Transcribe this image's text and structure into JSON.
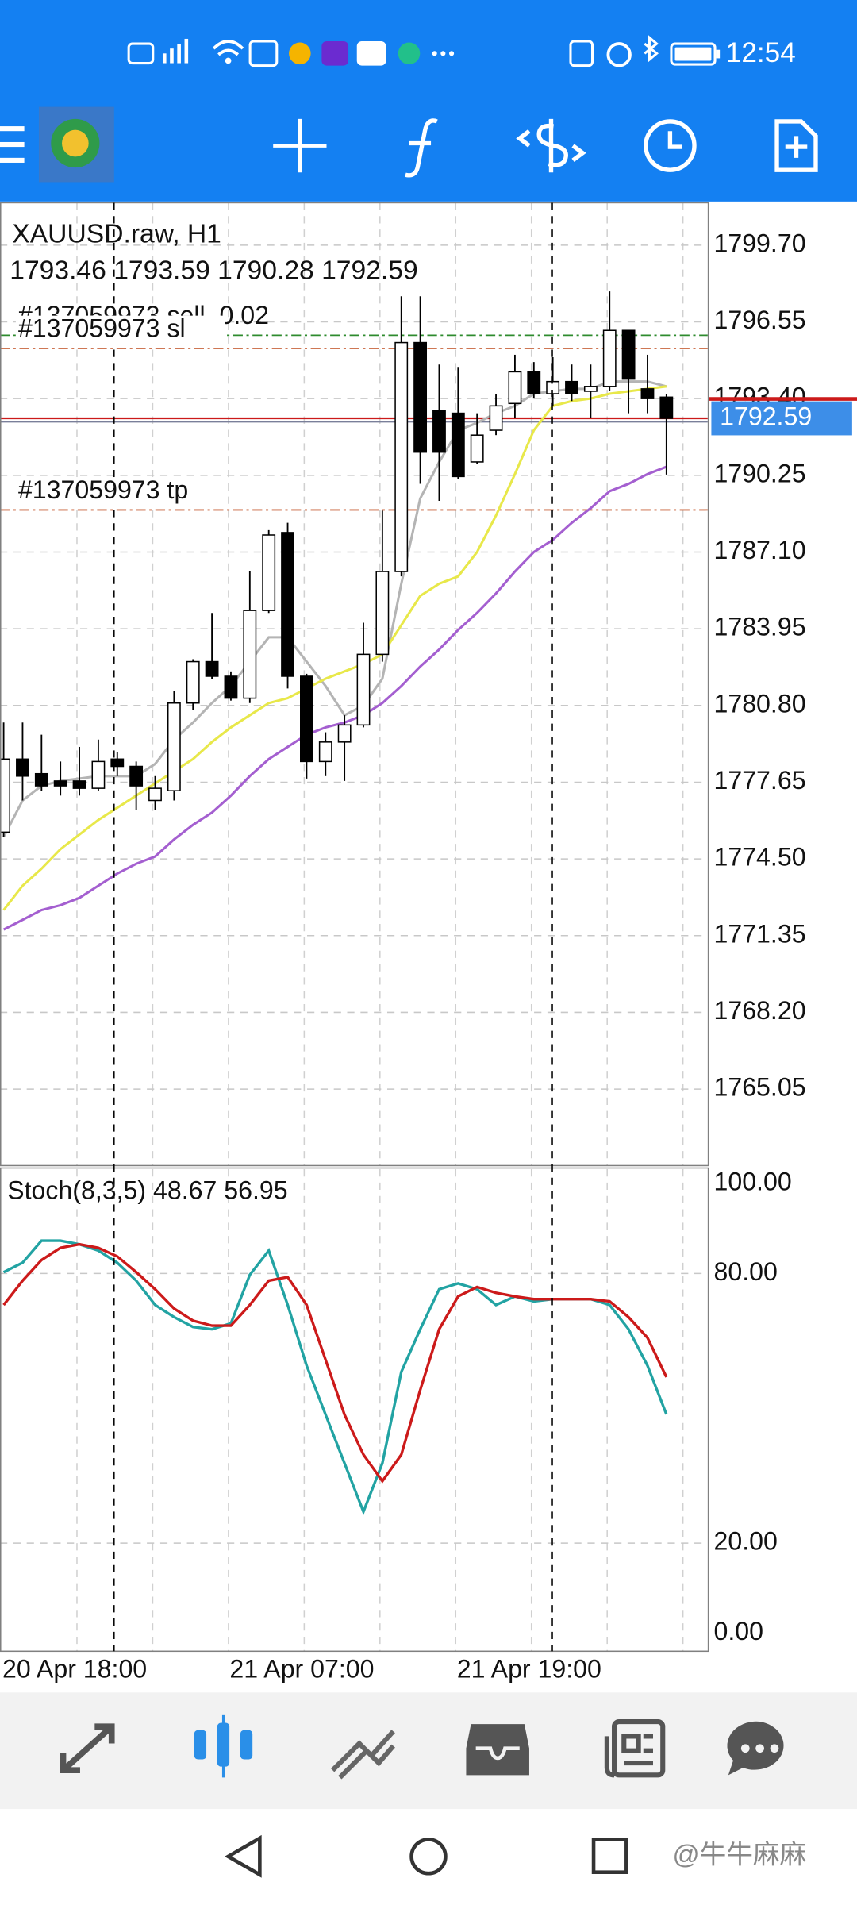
{
  "status_bar": {
    "time": "12:54"
  },
  "watermark": "@牛牛麻麻",
  "chart_data": [
    {
      "type": "candlestick",
      "title": "XAUUSD.raw, H1",
      "subtitle": "1793.46 1793.59 1790.28 1792.59",
      "x": [
        "20 Apr 18:00",
        null,
        null,
        null,
        null,
        null,
        null,
        null,
        null,
        null,
        null,
        null,
        "21 Apr 07:00",
        null,
        null,
        null,
        null,
        null,
        null,
        null,
        null,
        null,
        null,
        null,
        "21 Apr 19:00",
        null,
        null,
        null,
        null,
        null,
        null,
        null,
        null,
        null,
        null,
        null
      ],
      "open": [
        1775.6,
        1778.6,
        1778.0,
        1777.7,
        1777.7,
        1777.4,
        1778.6,
        1778.3,
        1776.9,
        1777.3,
        1780.9,
        1782.6,
        1782.0,
        1781.1,
        1784.7,
        1787.9,
        1782.0,
        1778.5,
        1779.3,
        1780.0,
        1782.9,
        1786.3,
        1795.7,
        1792.9,
        1792.8,
        1790.8,
        1792.1,
        1793.2,
        1794.5,
        1793.6,
        1794.1,
        1793.7,
        1793.9,
        1796.2,
        1793.8,
        1793.46
      ],
      "high": [
        1780.1,
        1780.1,
        1779.6,
        1778.5,
        1779.1,
        1779.4,
        1778.9,
        1778.5,
        1777.9,
        1781.4,
        1782.7,
        1784.6,
        1782.2,
        1786.3,
        1788.0,
        1788.3,
        1782.1,
        1779.7,
        1780.4,
        1784.2,
        1788.8,
        1797.6,
        1797.6,
        1794.8,
        1794.7,
        1792.8,
        1793.6,
        1795.2,
        1794.9,
        1795.1,
        1794.8,
        1794.8,
        1797.8,
        1796.2,
        1795.2,
        1793.59
      ],
      "low": [
        1775.4,
        1776.9,
        1777.3,
        1777.1,
        1777.1,
        1777.3,
        1777.9,
        1776.5,
        1776.5,
        1776.9,
        1780.6,
        1781.9,
        1781.0,
        1780.9,
        1784.6,
        1781.5,
        1777.8,
        1777.9,
        1777.7,
        1779.9,
        1782.6,
        1786.1,
        1789.9,
        1789.2,
        1790.1,
        1790.7,
        1791.9,
        1792.6,
        1793.4,
        1793.1,
        1793.3,
        1792.6,
        1793.7,
        1792.8,
        1792.8,
        1790.28
      ],
      "close": [
        1778.6,
        1777.9,
        1777.5,
        1777.5,
        1777.4,
        1778.5,
        1778.3,
        1777.5,
        1777.4,
        1780.9,
        1782.6,
        1782.0,
        1781.1,
        1784.7,
        1787.8,
        1782.0,
        1778.5,
        1779.3,
        1780.0,
        1782.9,
        1786.3,
        1795.7,
        1791.2,
        1791.2,
        1790.2,
        1791.9,
        1793.1,
        1794.5,
        1793.6,
        1794.1,
        1793.6,
        1793.9,
        1796.2,
        1794.2,
        1793.4,
        1792.59
      ],
      "up_color": "#ffffff",
      "down_color": "#000000",
      "lines": [
        {
          "color": "#b4b4b4",
          "values": [
            1775.4,
            1776.9,
            1777.5,
            1777.7,
            1777.8,
            1777.9,
            1777.9,
            1777.9,
            1778.4,
            1779.4,
            1780.1,
            1780.9,
            1781.6,
            1782.6,
            1783.6,
            1783.6,
            1782.6,
            1781.6,
            1780.4,
            1780.8,
            1781.9,
            1785.8,
            1789.3,
            1790.8,
            1792.1,
            1792.4,
            1792.8,
            1793.1,
            1793.6,
            1793.7,
            1793.8,
            1793.8,
            1794.1,
            1794.1,
            1794.1,
            1793.9
          ]
        },
        {
          "color": "#e8e84a",
          "values": [
            1772.4,
            1773.4,
            1774.1,
            1774.9,
            1775.5,
            1776.1,
            1776.6,
            1777.1,
            1777.6,
            1778.1,
            1778.6,
            1779.3,
            1779.9,
            1780.4,
            1780.9,
            1781.1,
            1781.5,
            1781.9,
            1782.2,
            1782.5,
            1782.9,
            1784.1,
            1785.3,
            1785.8,
            1786.1,
            1787.1,
            1788.6,
            1790.3,
            1792.1,
            1793.1,
            1793.3,
            1793.4,
            1793.6,
            1793.7,
            1793.8,
            1793.9
          ]
        },
        {
          "color": "#a45fd0",
          "values": [
            1771.6,
            1772.0,
            1772.4,
            1772.6,
            1772.9,
            1773.4,
            1773.9,
            1774.3,
            1774.6,
            1775.3,
            1775.9,
            1776.4,
            1777.1,
            1777.9,
            1778.6,
            1779.1,
            1779.6,
            1779.9,
            1780.1,
            1780.4,
            1780.9,
            1781.6,
            1782.4,
            1783.1,
            1783.9,
            1784.6,
            1785.4,
            1786.3,
            1787.1,
            1787.6,
            1788.3,
            1788.9,
            1789.6,
            1789.9,
            1790.3,
            1790.6
          ]
        }
      ],
      "levels": [
        {
          "label": "#137059973 sell, 0.02",
          "value": 1796.0,
          "color": "#2e8b2e"
        },
        {
          "label": "#137059973 sl",
          "value": 1795.46,
          "color": "#c8643c"
        },
        {
          "label": "#137059973 tp",
          "value": 1788.83,
          "color": "#c8643c"
        }
      ],
      "bid": 1792.59,
      "bid_color": "#cc1a1a",
      "ylim": [
        1761.91,
        1801.44
      ],
      "yticks": [
        {
          "value": 1799.7,
          "label": "1799.70"
        },
        {
          "value": 1796.55,
          "label": "1796.55"
        },
        {
          "value": 1793.4,
          "label": "1793.40"
        },
        {
          "value": 1790.25,
          "label": "1790.25"
        },
        {
          "value": 1787.1,
          "label": "1787.10"
        },
        {
          "value": 1783.95,
          "label": "1783.95"
        },
        {
          "value": 1780.8,
          "label": "1780.80"
        },
        {
          "value": 1777.65,
          "label": "1777.65"
        },
        {
          "value": 1774.5,
          "label": "1774.50"
        },
        {
          "value": 1771.35,
          "label": "1771.35"
        },
        {
          "value": 1768.2,
          "label": "1768.20"
        },
        {
          "value": 1765.05,
          "label": "1765.05"
        }
      ],
      "grid": true
    },
    {
      "type": "line",
      "title": "Stoch(8,3,5) 48.67 56.95",
      "series": [
        {
          "color": "#22a3a3",
          "values": [
            80.3,
            82.4,
            87.3,
            87.3,
            86.5,
            85.1,
            82.4,
            78.4,
            73.0,
            70.3,
            68.1,
            67.6,
            68.9,
            79.7,
            85.1,
            73.0,
            59.5,
            48.6,
            37.8,
            27.0,
            37.8,
            58.1,
            67.6,
            76.5,
            77.8,
            76.5,
            73.0,
            74.9,
            73.8,
            74.3,
            74.3,
            74.3,
            73.0,
            67.6,
            59.5,
            48.67
          ]
        },
        {
          "color": "#cc1a1a",
          "values": [
            73.0,
            78.4,
            83.0,
            85.7,
            86.5,
            85.7,
            83.8,
            80.3,
            76.5,
            72.2,
            69.5,
            68.4,
            68.4,
            73.0,
            78.4,
            79.2,
            73.0,
            60.8,
            48.6,
            39.7,
            33.8,
            39.7,
            54.1,
            67.6,
            74.9,
            77.0,
            75.7,
            74.9,
            74.3,
            74.3,
            74.3,
            74.3,
            73.8,
            70.3,
            65.7,
            56.95
          ]
        }
      ],
      "ylim": [
        -4.05,
        103.2
      ],
      "yticks": [
        {
          "value": 100,
          "label": "100.00"
        },
        {
          "value": 80,
          "label": "80.00"
        },
        {
          "value": 20,
          "label": "20.00"
        },
        {
          "value": 0,
          "label": "0.00"
        }
      ],
      "grid": true
    }
  ]
}
